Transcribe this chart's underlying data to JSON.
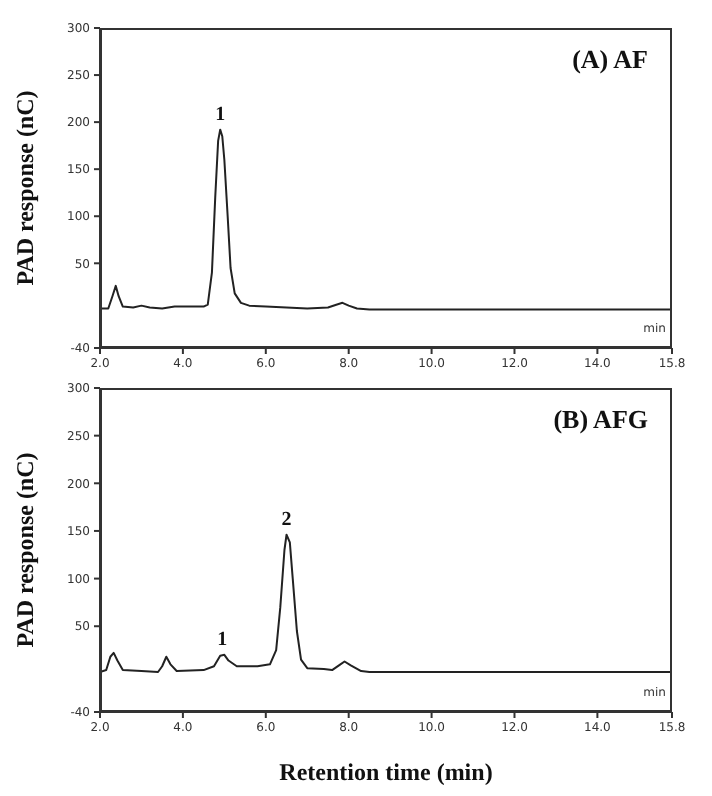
{
  "chart_data": [
    {
      "type": "line",
      "title": "(A) AF",
      "ylabel": "PAD response (nC)",
      "xlim": [
        2.0,
        15.8
      ],
      "xticks": [
        {
          "value": 2,
          "label": "2.0"
        },
        {
          "value": 4,
          "label": "4.0"
        },
        {
          "value": 6,
          "label": "6.0"
        },
        {
          "value": 8,
          "label": "8.0"
        },
        {
          "value": 10,
          "label": "10.0"
        },
        {
          "value": 12,
          "label": "12.0"
        },
        {
          "value": 14,
          "label": "14.0"
        },
        {
          "value": 15.8,
          "label": "15.8"
        }
      ],
      "ylim": [
        -40,
        300
      ],
      "yticks": [
        -40,
        50,
        100,
        150,
        200,
        250,
        300
      ],
      "marker": "none",
      "line_style": "solid",
      "annotations": [
        {
          "text": "1",
          "x": 4.9,
          "y": 192
        },
        "min"
      ],
      "series": [
        {
          "color": "#222222",
          "x": [
            2.0,
            2.2,
            2.3,
            2.38,
            2.45,
            2.55,
            2.8,
            3.0,
            3.2,
            3.5,
            3.8,
            4.0,
            4.5,
            4.6,
            4.7,
            4.78,
            4.85,
            4.9,
            4.95,
            5.0,
            5.08,
            5.15,
            5.25,
            5.4,
            5.6,
            6.0,
            6.5,
            7.0,
            7.5,
            7.7,
            7.85,
            8.0,
            8.2,
            8.5,
            10,
            12,
            15.8
          ],
          "values": [
            2,
            2,
            15,
            26,
            15,
            4,
            3,
            5,
            3,
            2,
            4,
            4,
            4,
            6,
            40,
            120,
            180,
            192,
            185,
            160,
            100,
            45,
            18,
            8,
            5,
            4,
            3,
            2,
            3,
            6,
            8,
            5,
            2,
            1,
            1,
            1,
            1
          ]
        }
      ]
    },
    {
      "type": "line",
      "title": "(B) AFG",
      "xlabel": "Retention time (min)",
      "ylabel": "PAD response (nC)",
      "xlim": [
        2.0,
        15.8
      ],
      "xticks": [
        {
          "value": 2,
          "label": "2.0"
        },
        {
          "value": 4,
          "label": "4.0"
        },
        {
          "value": 6,
          "label": "6.0"
        },
        {
          "value": 8,
          "label": "8.0"
        },
        {
          "value": 10,
          "label": "10.0"
        },
        {
          "value": 12,
          "label": "12.0"
        },
        {
          "value": 14,
          "label": "14.0"
        },
        {
          "value": 15.8,
          "label": "15.8"
        }
      ],
      "ylim": [
        -40,
        300
      ],
      "yticks": [
        -40,
        50,
        100,
        150,
        200,
        250,
        300
      ],
      "marker": "none",
      "line_style": "solid",
      "annotations": [
        {
          "text": "1",
          "x": 4.95,
          "y": 20
        },
        {
          "text": "2",
          "x": 6.5,
          "y": 146
        },
        "min"
      ],
      "series": [
        {
          "color": "#222222",
          "x": [
            2.0,
            2.15,
            2.25,
            2.33,
            2.42,
            2.55,
            3.0,
            3.4,
            3.5,
            3.6,
            3.7,
            3.85,
            4.5,
            4.75,
            4.9,
            5.0,
            5.1,
            5.3,
            5.8,
            6.1,
            6.25,
            6.35,
            6.45,
            6.5,
            6.58,
            6.65,
            6.75,
            6.85,
            7.0,
            7.4,
            7.6,
            7.8,
            7.9,
            8.05,
            8.3,
            8.5,
            10,
            15.8
          ],
          "values": [
            2,
            4,
            18,
            22,
            14,
            4,
            3,
            2,
            8,
            18,
            10,
            3,
            4,
            8,
            19,
            20,
            14,
            8,
            8,
            10,
            25,
            70,
            130,
            146,
            138,
            100,
            45,
            15,
            6,
            5,
            4,
            10,
            13,
            9,
            3,
            2,
            2,
            2
          ]
        }
      ]
    }
  ]
}
